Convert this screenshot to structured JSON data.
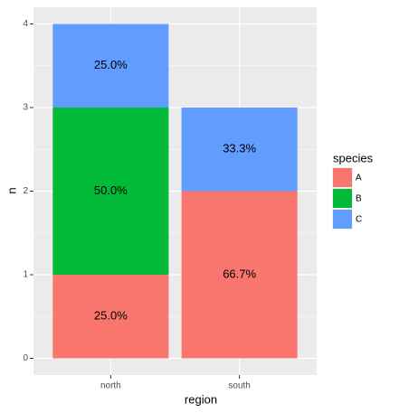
{
  "chart_data": {
    "type": "stacked_bar",
    "x_label": "region",
    "y_label": "n",
    "categories": [
      "north",
      "south"
    ],
    "series": [
      {
        "name": "A",
        "color": "#F8766D",
        "values": [
          1,
          2
        ],
        "labels": [
          "25.0%",
          "66.7%"
        ]
      },
      {
        "name": "B",
        "color": "#00BA38",
        "values": [
          2,
          0
        ],
        "labels": [
          "50.0%",
          null
        ]
      },
      {
        "name": "C",
        "color": "#619CFF",
        "values": [
          1,
          1
        ],
        "labels": [
          "25.0%",
          "33.3%"
        ]
      }
    ],
    "ylim": [
      -0.2,
      4.2
    ],
    "yticks": [
      0,
      1,
      2,
      3,
      4
    ],
    "yticks_minor": [
      0.5,
      1.5,
      2.5,
      3.5
    ],
    "grid": true,
    "legend_title": "species",
    "legend_position": "right"
  }
}
